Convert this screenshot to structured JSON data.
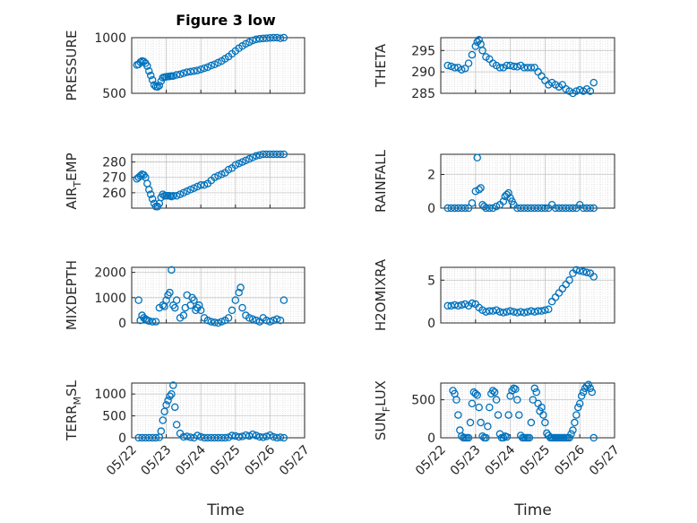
{
  "figure": {
    "title": "Figure 3 low",
    "x_ticks": [
      "05/22",
      "05/23",
      "05/24",
      "05/25",
      "05/26",
      "05/27"
    ],
    "x_label": "Time",
    "marker_color": "#0072BD"
  },
  "chart_data": [
    {
      "id": "pressure",
      "type": "scatter",
      "ylabel": "PRESSURE",
      "ylim": [
        500,
        1000
      ],
      "yticks": [
        500,
        1000
      ],
      "xlim": [
        0,
        5
      ],
      "x": [
        0.15,
        0.2,
        0.25,
        0.3,
        0.35,
        0.4,
        0.45,
        0.5,
        0.55,
        0.6,
        0.65,
        0.7,
        0.75,
        0.8,
        0.85,
        0.9,
        0.95,
        1.0,
        1.05,
        1.1,
        1.15,
        1.2,
        1.3,
        1.4,
        1.5,
        1.6,
        1.7,
        1.8,
        1.9,
        2.0,
        2.1,
        2.2,
        2.3,
        2.4,
        2.5,
        2.6,
        2.7,
        2.8,
        2.9,
        3.0,
        3.1,
        3.2,
        3.3,
        3.4,
        3.5,
        3.6,
        3.7,
        3.8,
        3.9,
        4.0,
        4.1,
        4.2,
        4.3,
        4.4
      ],
      "y": [
        755,
        760,
        780,
        790,
        785,
        770,
        745,
        700,
        660,
        620,
        575,
        560,
        558,
        570,
        610,
        640,
        645,
        648,
        650,
        652,
        655,
        655,
        665,
        670,
        680,
        690,
        695,
        700,
        705,
        715,
        725,
        735,
        750,
        760,
        775,
        790,
        810,
        830,
        855,
        880,
        905,
        925,
        945,
        960,
        975,
        985,
        990,
        993,
        995,
        998,
        1000,
        1000,
        995,
        1000
      ]
    },
    {
      "id": "theta",
      "type": "scatter",
      "ylabel": "THETA",
      "ylim": [
        285,
        298
      ],
      "yticks": [
        285,
        290,
        295
      ],
      "xlim": [
        0,
        5
      ],
      "x": [
        0.2,
        0.3,
        0.4,
        0.5,
        0.6,
        0.7,
        0.8,
        0.9,
        1.0,
        1.05,
        1.1,
        1.15,
        1.2,
        1.3,
        1.4,
        1.5,
        1.6,
        1.7,
        1.8,
        1.9,
        2.0,
        2.1,
        2.2,
        2.3,
        2.4,
        2.5,
        2.6,
        2.7,
        2.8,
        2.9,
        3.0,
        3.1,
        3.2,
        3.3,
        3.4,
        3.5,
        3.6,
        3.7,
        3.8,
        3.9,
        4.0,
        4.1,
        4.2,
        4.3,
        4.4
      ],
      "y": [
        291.5,
        291.3,
        291,
        291,
        290.5,
        290.8,
        292,
        294,
        296,
        297,
        297.5,
        296.5,
        295,
        293.5,
        293,
        292,
        291.5,
        291,
        291,
        291.5,
        291.5,
        291.3,
        291.2,
        291.5,
        291,
        291,
        291,
        291,
        290,
        289,
        288,
        287,
        287.5,
        287,
        286.5,
        287,
        286,
        285.5,
        285,
        285.5,
        285.8,
        285.5,
        286,
        285.5,
        287.5
      ]
    },
    {
      "id": "air_temp",
      "type": "scatter",
      "ylabel": "AIR_TEMP",
      "ylim": [
        250,
        285
      ],
      "yticks": [
        260,
        270,
        280
      ],
      "xlim": [
        0,
        5
      ],
      "x": [
        0.15,
        0.2,
        0.25,
        0.3,
        0.35,
        0.4,
        0.45,
        0.5,
        0.55,
        0.6,
        0.65,
        0.7,
        0.75,
        0.8,
        0.85,
        0.9,
        0.95,
        1.0,
        1.05,
        1.1,
        1.15,
        1.2,
        1.3,
        1.4,
        1.5,
        1.6,
        1.7,
        1.8,
        1.9,
        2.0,
        2.1,
        2.2,
        2.3,
        2.4,
        2.5,
        2.6,
        2.7,
        2.8,
        2.9,
        3.0,
        3.1,
        3.2,
        3.3,
        3.4,
        3.5,
        3.6,
        3.7,
        3.8,
        3.9,
        4.0,
        4.1,
        4.2,
        4.3,
        4.4
      ],
      "y": [
        269,
        270,
        271,
        272,
        271.5,
        270,
        266,
        262,
        259,
        256,
        253,
        251,
        251,
        253,
        257,
        259,
        258,
        258,
        258,
        258,
        257.5,
        258,
        258,
        259,
        260,
        261,
        262,
        263,
        264,
        265,
        265,
        266,
        268,
        270,
        271,
        272,
        273,
        275,
        276,
        278,
        279,
        280,
        281,
        282,
        283,
        284,
        284.5,
        285,
        285,
        285.5,
        286,
        286,
        286,
        287
      ]
    },
    {
      "id": "rainfall",
      "type": "scatter",
      "ylabel": "RAINFALL",
      "ylim": [
        0,
        3.2
      ],
      "yticks": [
        0,
        2
      ],
      "xlim": [
        0,
        5
      ],
      "x": [
        0.2,
        0.3,
        0.4,
        0.5,
        0.6,
        0.7,
        0.8,
        0.9,
        1.0,
        1.05,
        1.1,
        1.15,
        1.2,
        1.25,
        1.3,
        1.4,
        1.5,
        1.6,
        1.7,
        1.8,
        1.85,
        1.9,
        1.95,
        2.0,
        2.05,
        2.1,
        2.2,
        2.3,
        2.4,
        2.5,
        2.6,
        2.7,
        2.8,
        2.9,
        3.0,
        3.1,
        3.2,
        3.3,
        3.4,
        3.5,
        3.6,
        3.7,
        3.8,
        3.9,
        4.0,
        4.1,
        4.2,
        4.3,
        4.4
      ],
      "y": [
        0,
        0,
        0,
        0,
        0,
        0,
        0,
        0.3,
        1.0,
        3.0,
        1.1,
        1.2,
        0.2,
        0.1,
        0,
        0,
        0,
        0.1,
        0.2,
        0.4,
        0.7,
        0.8,
        0.9,
        0.6,
        0.4,
        0.2,
        0,
        0,
        0,
        0,
        0,
        0,
        0,
        0,
        0,
        0,
        0.2,
        0,
        0,
        0,
        0,
        0,
        0,
        0,
        0.2,
        0,
        0,
        0,
        0
      ]
    },
    {
      "id": "mixdepth",
      "type": "scatter",
      "ylabel": "MIXDEPTH",
      "ylim": [
        0,
        2200
      ],
      "yticks": [
        0,
        1000,
        2000
      ],
      "xlim": [
        0,
        5
      ],
      "x": [
        0.2,
        0.25,
        0.3,
        0.35,
        0.4,
        0.45,
        0.5,
        0.6,
        0.7,
        0.8,
        0.9,
        0.95,
        1.0,
        1.05,
        1.1,
        1.15,
        1.2,
        1.25,
        1.3,
        1.4,
        1.5,
        1.55,
        1.6,
        1.7,
        1.75,
        1.8,
        1.85,
        1.9,
        1.95,
        2.0,
        2.1,
        2.2,
        2.3,
        2.4,
        2.5,
        2.6,
        2.7,
        2.8,
        2.9,
        3.0,
        3.1,
        3.15,
        3.2,
        3.3,
        3.4,
        3.5,
        3.6,
        3.7,
        3.8,
        3.9,
        4.0,
        4.1,
        4.2,
        4.3,
        4.4
      ],
      "y": [
        900,
        100,
        300,
        200,
        150,
        100,
        80,
        50,
        50,
        600,
        700,
        650,
        900,
        1100,
        1200,
        2100,
        700,
        600,
        900,
        200,
        300,
        600,
        1100,
        700,
        1000,
        900,
        500,
        600,
        700,
        500,
        200,
        100,
        50,
        20,
        0,
        50,
        100,
        200,
        500,
        900,
        1200,
        1400,
        600,
        300,
        200,
        150,
        100,
        50,
        200,
        100,
        50,
        100,
        150,
        100,
        900
      ]
    },
    {
      "id": "h2omixra",
      "type": "scatter",
      "ylabel": "H2OMIXRA",
      "ylim": [
        0,
        6.5
      ],
      "yticks": [
        0,
        5
      ],
      "xlim": [
        0,
        5
      ],
      "x": [
        0.2,
        0.3,
        0.4,
        0.5,
        0.6,
        0.7,
        0.8,
        0.9,
        1.0,
        1.1,
        1.2,
        1.3,
        1.4,
        1.5,
        1.6,
        1.7,
        1.8,
        1.9,
        2.0,
        2.1,
        2.2,
        2.3,
        2.4,
        2.5,
        2.6,
        2.7,
        2.8,
        2.9,
        3.0,
        3.1,
        3.2,
        3.3,
        3.4,
        3.5,
        3.6,
        3.7,
        3.8,
        3.9,
        4.0,
        4.1,
        4.2,
        4.3,
        4.4
      ],
      "y": [
        2.0,
        2.0,
        2.1,
        2.0,
        2.1,
        2.2,
        2.0,
        2.3,
        2.2,
        1.8,
        1.5,
        1.3,
        1.4,
        1.4,
        1.5,
        1.3,
        1.2,
        1.3,
        1.4,
        1.3,
        1.2,
        1.3,
        1.2,
        1.3,
        1.4,
        1.3,
        1.4,
        1.4,
        1.5,
        1.6,
        2.5,
        3.0,
        3.5,
        4.0,
        4.5,
        5.0,
        5.8,
        6.2,
        6.1,
        6.0,
        5.9,
        5.8,
        5.4
      ]
    },
    {
      "id": "terr_msl",
      "type": "scatter",
      "ylabel": "TERR_MSL",
      "ylim": [
        0,
        1250
      ],
      "yticks": [
        0,
        500,
        1000
      ],
      "xlim": [
        0,
        5
      ],
      "x": [
        0.2,
        0.3,
        0.4,
        0.5,
        0.6,
        0.7,
        0.8,
        0.85,
        0.9,
        0.95,
        1.0,
        1.05,
        1.1,
        1.15,
        1.2,
        1.25,
        1.3,
        1.4,
        1.5,
        1.6,
        1.7,
        1.8,
        1.9,
        2.0,
        2.1,
        2.2,
        2.3,
        2.4,
        2.5,
        2.6,
        2.7,
        2.8,
        2.9,
        3.0,
        3.1,
        3.2,
        3.3,
        3.4,
        3.5,
        3.6,
        3.7,
        3.8,
        3.9,
        4.0,
        4.1,
        4.2,
        4.3,
        4.4
      ],
      "y": [
        0,
        0,
        0,
        0,
        0,
        0,
        10,
        150,
        400,
        600,
        750,
        850,
        950,
        1000,
        1200,
        700,
        300,
        100,
        20,
        30,
        10,
        0,
        50,
        20,
        0,
        0,
        0,
        0,
        0,
        0,
        0,
        10,
        50,
        40,
        20,
        30,
        60,
        40,
        80,
        50,
        20,
        10,
        30,
        60,
        20,
        0,
        10,
        0
      ]
    },
    {
      "id": "sun_flux",
      "type": "scatter",
      "ylabel": "SUN_FLUX",
      "ylim": [
        0,
        720
      ],
      "yticks": [
        0,
        500
      ],
      "xlim": [
        0,
        5
      ],
      "x": [
        0.35,
        0.4,
        0.45,
        0.5,
        0.55,
        0.6,
        0.65,
        0.7,
        0.75,
        0.8,
        0.85,
        0.9,
        0.95,
        1.0,
        1.05,
        1.1,
        1.15,
        1.2,
        1.25,
        1.3,
        1.35,
        1.4,
        1.45,
        1.5,
        1.55,
        1.6,
        1.65,
        1.7,
        1.75,
        1.8,
        1.85,
        1.9,
        1.95,
        2.0,
        2.05,
        2.1,
        2.15,
        2.2,
        2.25,
        2.3,
        2.35,
        2.4,
        2.45,
        2.5,
        2.55,
        2.6,
        2.65,
        2.7,
        2.75,
        2.8,
        2.85,
        2.9,
        2.95,
        3.0,
        3.05,
        3.1,
        3.15,
        3.2,
        3.25,
        3.3,
        3.35,
        3.4,
        3.45,
        3.5,
        3.55,
        3.6,
        3.65,
        3.7,
        3.75,
        3.8,
        3.85,
        3.9,
        3.95,
        4.0,
        4.05,
        4.1,
        4.15,
        4.2,
        4.25,
        4.3,
        4.35,
        4.4
      ],
      "y": [
        620,
        580,
        500,
        300,
        100,
        20,
        0,
        0,
        0,
        0,
        200,
        450,
        600,
        580,
        560,
        400,
        200,
        20,
        0,
        0,
        150,
        400,
        580,
        620,
        600,
        500,
        300,
        50,
        0,
        0,
        20,
        10,
        300,
        550,
        620,
        650,
        640,
        500,
        300,
        30,
        0,
        0,
        0,
        0,
        0,
        200,
        500,
        650,
        600,
        450,
        350,
        400,
        300,
        200,
        60,
        30,
        0,
        0,
        0,
        0,
        0,
        0,
        0,
        0,
        0,
        0,
        0,
        0,
        50,
        100,
        200,
        300,
        400,
        450,
        550,
        600,
        650,
        680,
        700,
        650,
        600,
        0
      ]
    }
  ]
}
